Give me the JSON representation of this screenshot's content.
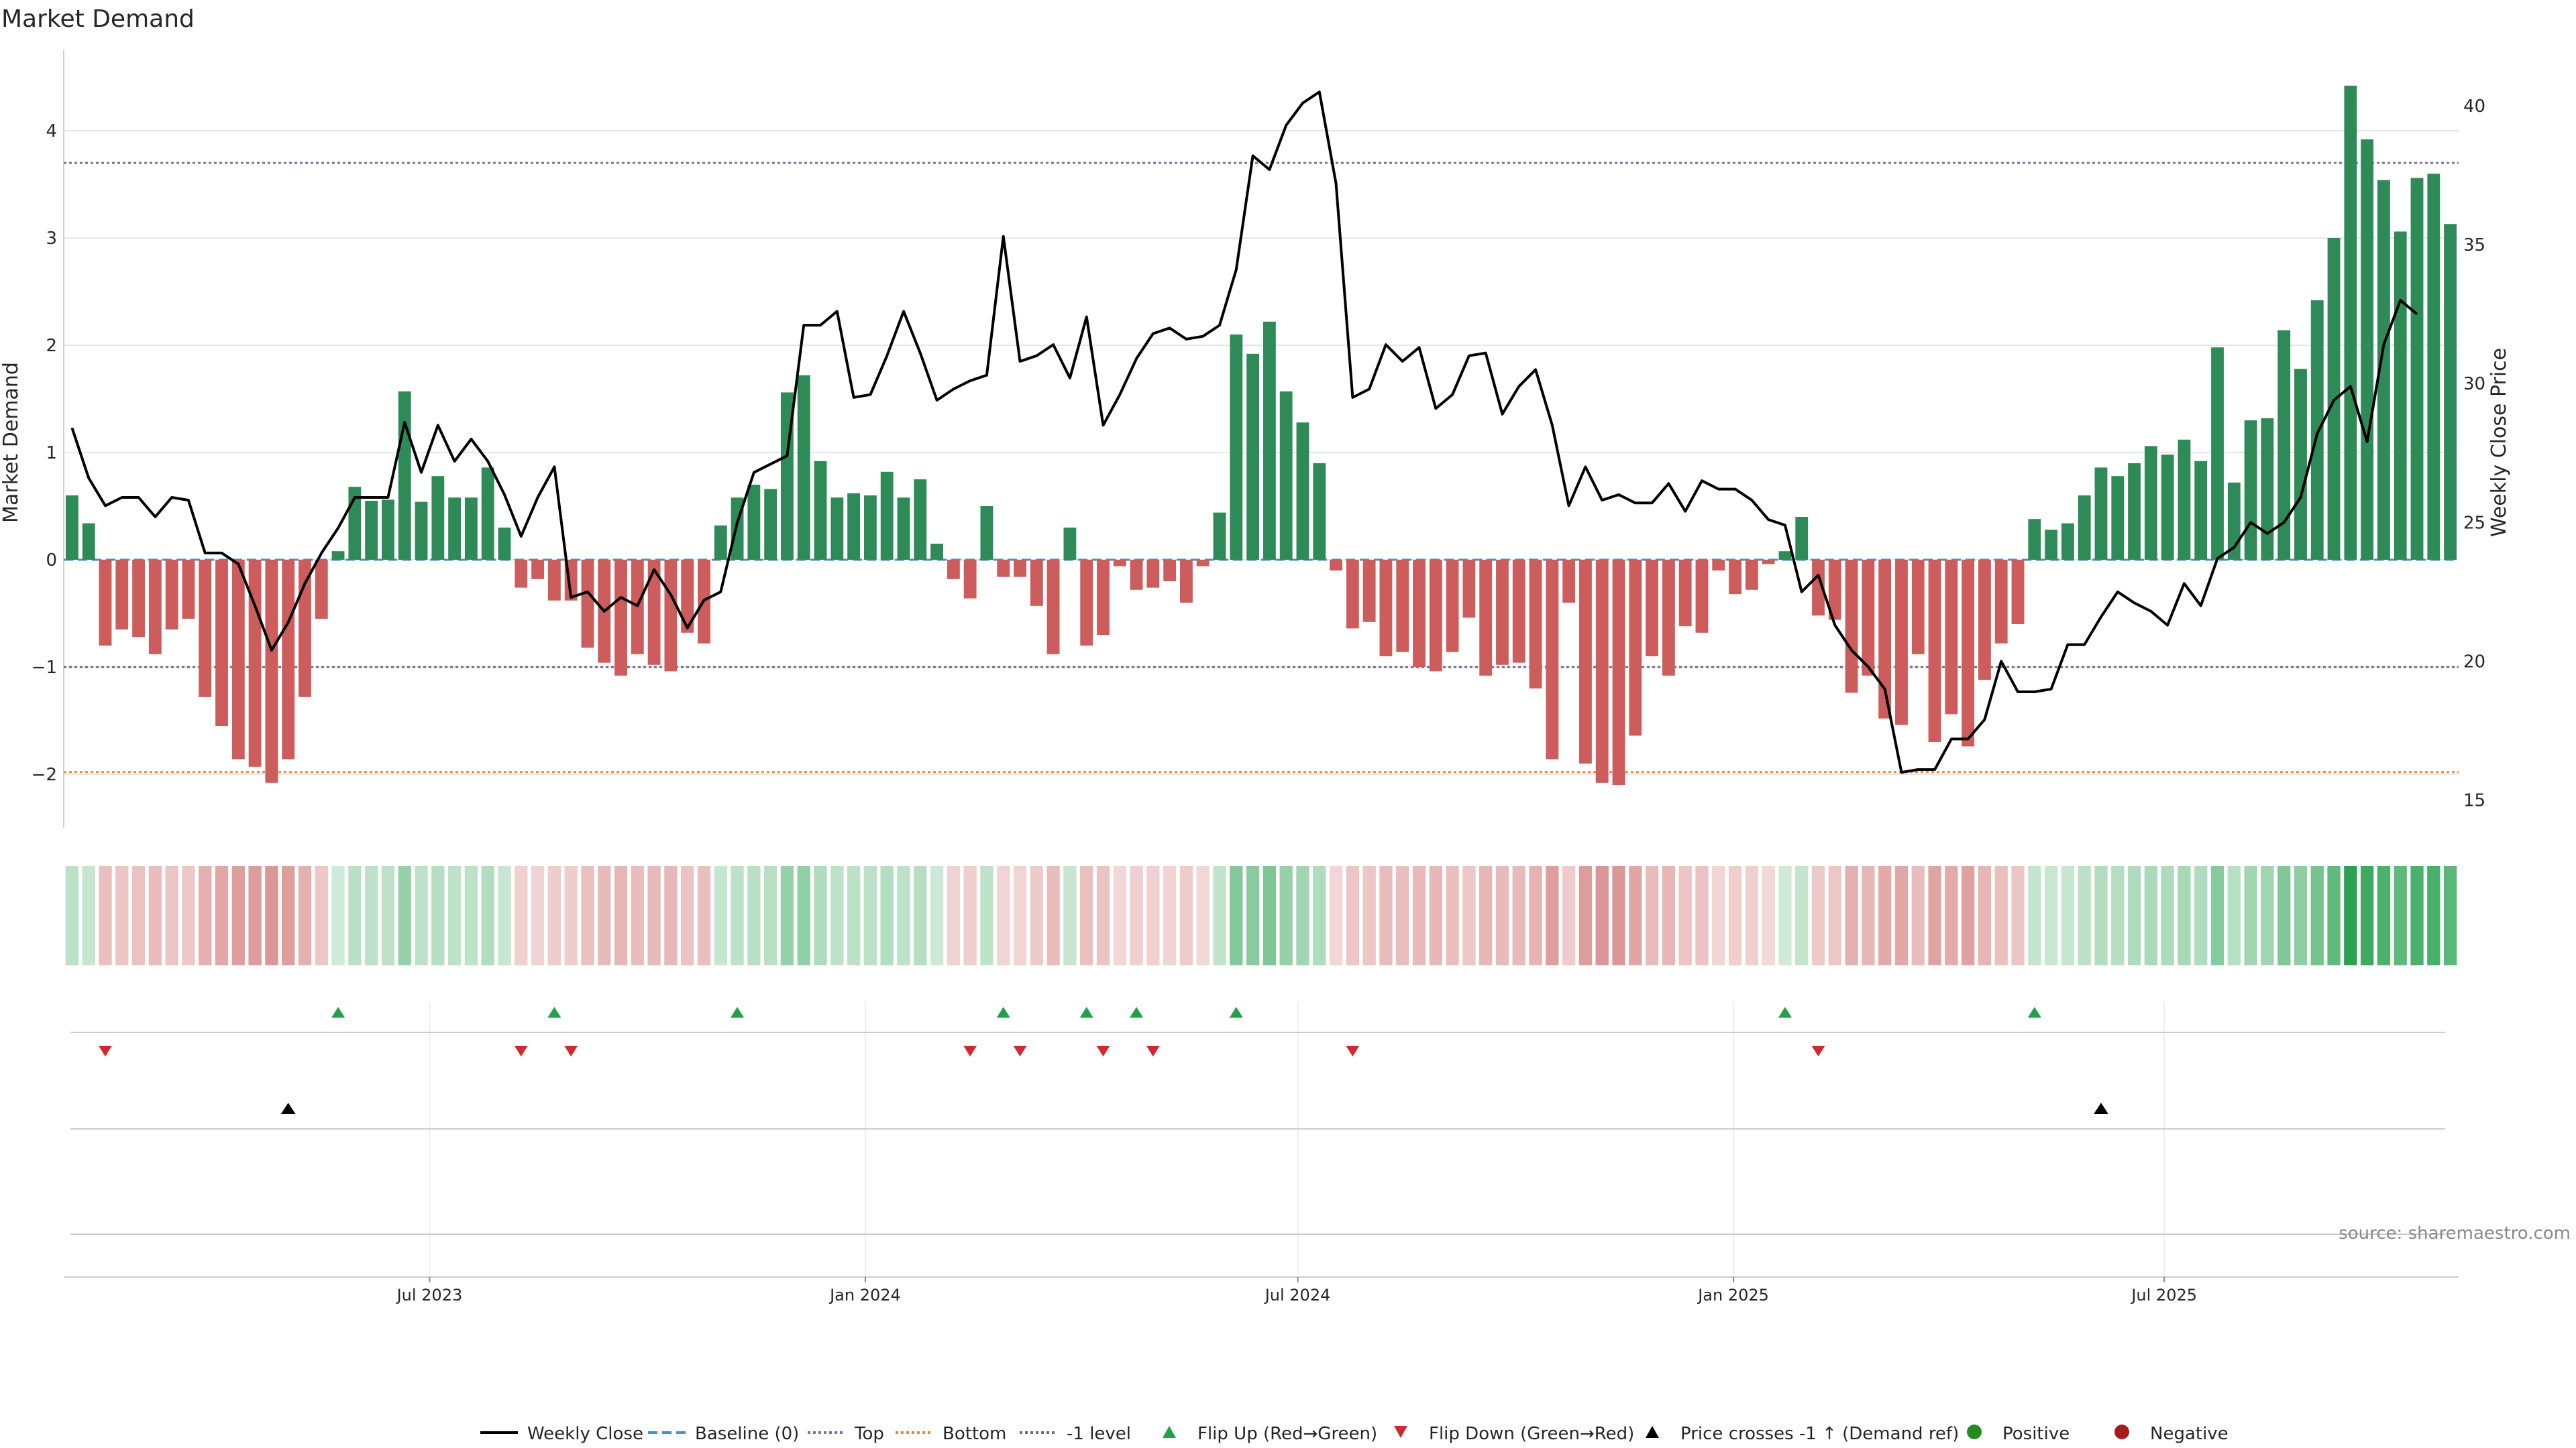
{
  "colors": {
    "positive": "#2e8b57",
    "negative": "#cd5c5c",
    "price_line": "#000000",
    "baseline": "#4a90c2",
    "top_line": "#7b6fa8",
    "bottom_line": "#e8893a",
    "minus1_line": "#6a6a8a",
    "flip_up": "#22a04a",
    "flip_down": "#d2282e",
    "cross": "#000000",
    "pos_dot": "#228b22",
    "neg_dot": "#a51c1c",
    "grid": "#e6e6e6",
    "axis_text": "#262626",
    "source_text": "#8a8a8a"
  },
  "chart_data": {
    "type": "bar",
    "title": "Market Demand",
    "ylabel": "Market Demand",
    "y2label": "Weekly Close Price",
    "ylim": [
      -2.5,
      4.75
    ],
    "y2lim": [
      14.0,
      42.0
    ],
    "yticks": [
      {
        "v": -2,
        "label": "−2"
      },
      {
        "v": -1,
        "label": "−1"
      },
      {
        "v": 0,
        "label": "0"
      },
      {
        "v": 1,
        "label": "1"
      },
      {
        "v": 2,
        "label": "2"
      },
      {
        "v": 3,
        "label": "3"
      },
      {
        "v": 4,
        "label": "4"
      }
    ],
    "y2ticks": [
      {
        "v": 15,
        "label": "15"
      },
      {
        "v": 20,
        "label": "20"
      },
      {
        "v": 25,
        "label": "25"
      },
      {
        "v": 30,
        "label": "30"
      },
      {
        "v": 35,
        "label": "35"
      },
      {
        "v": 40,
        "label": "40"
      }
    ],
    "xticks": [
      {
        "label": "Jul 2023",
        "week": 21.5
      },
      {
        "label": "Jan 2024",
        "week": 47.7
      },
      {
        "label": "Jul 2024",
        "week": 73.7
      },
      {
        "label": "Jan 2025",
        "week": 99.9
      },
      {
        "label": "Jul 2025",
        "week": 125.8
      }
    ],
    "levels": {
      "top": 3.7,
      "bottom": -1.98,
      "minus1": -1.0,
      "baseline": 0
    },
    "weeks": [
      "2023-02-06",
      "2023-02-13",
      "2023-02-20",
      "2023-02-27",
      "2023-03-06",
      "2023-03-13",
      "2023-03-20",
      "2023-03-27",
      "2023-04-03",
      "2023-04-10",
      "2023-04-17",
      "2023-04-24",
      "2023-05-01",
      "2023-05-08",
      "2023-05-15",
      "2023-05-22",
      "2023-05-29",
      "2023-06-05",
      "2023-06-12",
      "2023-06-19",
      "2023-06-26",
      "2023-07-03",
      "2023-07-10",
      "2023-07-17",
      "2023-07-24",
      "2023-07-31",
      "2023-08-07",
      "2023-08-14",
      "2023-08-21",
      "2023-08-28",
      "2023-09-04",
      "2023-09-11",
      "2023-09-18",
      "2023-09-25",
      "2023-10-02",
      "2023-10-09",
      "2023-10-16",
      "2023-10-23",
      "2023-10-30",
      "2023-11-06",
      "2023-11-13",
      "2023-11-20",
      "2023-11-27",
      "2023-12-04",
      "2023-12-11",
      "2023-12-18",
      "2023-12-25",
      "2024-01-01",
      "2024-01-08",
      "2024-01-15",
      "2024-01-22",
      "2024-01-29",
      "2024-02-05",
      "2024-02-12",
      "2024-02-19",
      "2024-02-26",
      "2024-03-04",
      "2024-03-11",
      "2024-03-18",
      "2024-03-25",
      "2024-04-01",
      "2024-04-08",
      "2024-04-15",
      "2024-04-22",
      "2024-04-29",
      "2024-05-06",
      "2024-05-13",
      "2024-05-20",
      "2024-05-27",
      "2024-06-03",
      "2024-06-10",
      "2024-06-17",
      "2024-06-24",
      "2024-07-01",
      "2024-07-08",
      "2024-07-15",
      "2024-07-22",
      "2024-07-29",
      "2024-08-05",
      "2024-08-12",
      "2024-08-19",
      "2024-08-26",
      "2024-09-02",
      "2024-09-09",
      "2024-09-16",
      "2024-09-23",
      "2024-09-30",
      "2024-10-07",
      "2024-10-14",
      "2024-10-21",
      "2024-10-28",
      "2024-11-04",
      "2024-11-11",
      "2024-11-18",
      "2024-11-25",
      "2024-12-02",
      "2024-12-09",
      "2024-12-16",
      "2024-12-23",
      "2024-12-30",
      "2025-01-06",
      "2025-01-13",
      "2025-01-20",
      "2025-01-27",
      "2025-02-03",
      "2025-02-10",
      "2025-02-17",
      "2025-02-24",
      "2025-03-03",
      "2025-03-10",
      "2025-03-17",
      "2025-03-24",
      "2025-03-31",
      "2025-04-07",
      "2025-04-14",
      "2025-04-21",
      "2025-04-28",
      "2025-05-05",
      "2025-05-12",
      "2025-05-19",
      "2025-05-26",
      "2025-06-02",
      "2025-06-09",
      "2025-06-16",
      "2025-06-23",
      "2025-06-30",
      "2025-07-07",
      "2025-07-14",
      "2025-07-21",
      "2025-07-28",
      "2025-08-04",
      "2025-08-11",
      "2025-08-18",
      "2025-08-25",
      "2025-09-01",
      "2025-09-08",
      "2025-09-15",
      "2025-09-22",
      "2025-09-29",
      "2025-10-06",
      "2025-10-13",
      "2025-10-20",
      "2025-10-27",
      "2025-11-03"
    ],
    "series": [
      {
        "name": "Market Demand",
        "axis": "left",
        "values": [
          0.6,
          0.34,
          -0.8,
          -0.65,
          -0.72,
          -0.88,
          -0.65,
          -0.55,
          -1.28,
          -1.55,
          -1.86,
          -1.93,
          -2.08,
          -1.86,
          -1.28,
          -0.55,
          0.08,
          0.68,
          0.55,
          0.56,
          1.57,
          0.54,
          0.78,
          0.58,
          0.58,
          0.86,
          0.3,
          -0.26,
          -0.18,
          -0.38,
          -0.38,
          -0.82,
          -0.96,
          -1.08,
          -0.88,
          -0.98,
          -1.04,
          -0.68,
          -0.78,
          0.32,
          0.58,
          0.7,
          0.66,
          1.56,
          1.72,
          0.92,
          0.58,
          0.62,
          0.6,
          0.82,
          0.58,
          0.75,
          0.15,
          -0.18,
          -0.36,
          0.5,
          -0.16,
          -0.16,
          -0.43,
          -0.88,
          0.3,
          -0.8,
          -0.7,
          -0.06,
          -0.28,
          -0.26,
          -0.2,
          -0.4,
          -0.06,
          0.44,
          2.1,
          1.92,
          2.22,
          1.57,
          1.28,
          0.9,
          -0.1,
          -0.64,
          -0.58,
          -0.9,
          -0.86,
          -1.0,
          -1.04,
          -0.86,
          -0.54,
          -1.08,
          -0.98,
          -0.96,
          -1.2,
          -1.86,
          -0.4,
          -1.9,
          -2.08,
          -2.1,
          -1.64,
          -0.9,
          -1.08,
          -0.62,
          -0.68,
          -0.1,
          -0.32,
          -0.28,
          -0.04,
          0.08,
          0.4,
          -0.52,
          -0.56,
          -1.24,
          -1.08,
          -1.48,
          -1.54,
          -0.88,
          -1.7,
          -1.44,
          -1.74,
          -1.12,
          -0.78,
          -0.6,
          0.38,
          0.28,
          0.34,
          0.6,
          0.86,
          0.78,
          0.9,
          1.06,
          0.98,
          1.12,
          0.92,
          1.98,
          0.72,
          1.3,
          1.32,
          2.14,
          1.78,
          2.42,
          3.0,
          4.42,
          3.92,
          3.54,
          3.06,
          3.56,
          3.6,
          3.13
        ]
      },
      {
        "name": "Weekly Close",
        "axis": "right",
        "values": [
          28.4,
          26.6,
          25.6,
          25.9,
          25.9,
          25.2,
          25.9,
          25.8,
          23.9,
          23.9,
          23.5,
          22.0,
          20.4,
          21.4,
          22.8,
          23.9,
          24.8,
          25.9,
          25.9,
          25.9,
          28.6,
          26.8,
          28.5,
          27.2,
          28.0,
          27.2,
          26.0,
          24.5,
          25.9,
          27.0,
          22.3,
          22.5,
          21.8,
          22.3,
          22.0,
          23.3,
          22.4,
          21.2,
          22.2,
          22.5,
          25.0,
          26.8,
          27.1,
          27.4,
          32.1,
          32.1,
          32.6,
          29.5,
          29.6,
          31.0,
          32.6,
          31.1,
          29.4,
          29.8,
          30.1,
          30.3,
          35.3,
          30.8,
          31.0,
          31.4,
          30.2,
          32.4,
          28.5,
          29.6,
          30.9,
          31.8,
          32.0,
          31.6,
          31.7,
          32.1,
          34.1,
          38.2,
          37.7,
          39.3,
          40.1,
          40.5,
          37.2,
          29.5,
          29.8,
          31.4,
          30.8,
          31.3,
          29.1,
          29.6,
          31.0,
          31.1,
          28.9,
          29.9,
          30.5,
          28.5,
          25.6,
          27.0,
          25.8,
          26.0,
          25.7,
          25.7,
          26.4,
          25.4,
          26.5,
          26.2,
          26.2,
          25.8,
          25.1,
          24.9,
          22.5,
          23.1,
          21.3,
          20.4,
          19.8,
          19.0,
          16.0,
          16.1,
          16.1,
          17.2,
          17.2,
          17.9,
          20.0,
          18.9,
          18.9,
          19.0,
          20.6,
          20.6,
          21.6,
          22.5,
          22.1,
          21.8,
          21.3,
          22.8,
          22.0,
          23.7,
          24.1,
          25.0,
          24.6,
          25.0,
          25.9,
          28.2,
          29.4,
          29.9,
          27.9,
          31.4,
          33.0,
          32.5
        ]
      }
    ],
    "strip": {
      "label": "",
      "values": "same as Market Demand"
    },
    "flip_up_weeks": [
      16,
      29,
      40,
      56,
      61,
      64,
      70,
      103,
      118
    ],
    "flip_down_weeks": [
      2,
      27,
      30,
      54,
      57,
      62,
      65,
      77,
      105
    ],
    "price_cross_weeks": [
      13,
      122
    ],
    "source": "source: sharemaestro.com",
    "legend": {
      "placement": "bottom",
      "entries": [
        {
          "label": "Weekly Close",
          "kind": "line",
          "color": "#000000",
          "dash": ""
        },
        {
          "label": "Baseline (0)",
          "kind": "line",
          "color": "#4a90c2",
          "dash": "14,7"
        },
        {
          "label": "Top",
          "kind": "line",
          "color": "#7b6fa8",
          "dash": "4,4"
        },
        {
          "label": "Bottom",
          "kind": "line",
          "color": "#e8893a",
          "dash": "4,4"
        },
        {
          "label": "-1 level",
          "kind": "line",
          "color": "#6a6a8a",
          "dash": "4,4"
        },
        {
          "label": "Flip Up (Red→Green)",
          "kind": "tri-up",
          "color": "#22a04a"
        },
        {
          "label": "Flip Down (Green→Red)",
          "kind": "tri-down",
          "color": "#d2282e"
        },
        {
          "label": "Price crosses -1 ↑ (Demand ref)",
          "kind": "tri-up",
          "color": "#000000"
        },
        {
          "label": "Positive",
          "kind": "dot",
          "color": "#228b22"
        },
        {
          "label": "Negative",
          "kind": "dot",
          "color": "#a51c1c"
        }
      ]
    }
  }
}
